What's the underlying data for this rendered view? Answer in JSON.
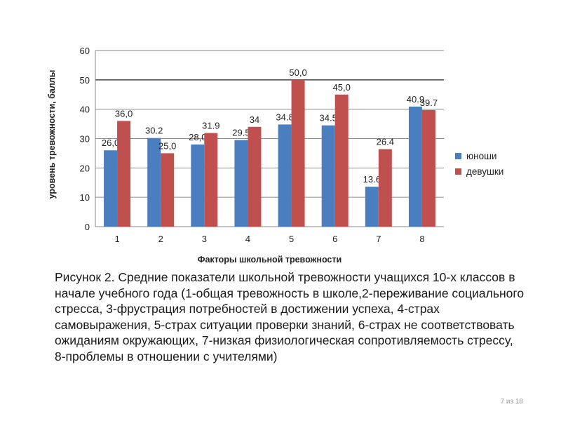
{
  "chart_data": {
    "type": "bar",
    "categories": [
      "1",
      "2",
      "3",
      "4",
      "5",
      "6",
      "7",
      "8"
    ],
    "series": [
      {
        "name": "юноши",
        "color": "#4a7ebf",
        "values": [
          26.0,
          30.2,
          28.0,
          29.5,
          34.8,
          34.5,
          13.6,
          40.9
        ],
        "labels": [
          "26,0",
          "30.2",
          "28,0",
          "29.5",
          "34.8",
          "34.5",
          "13.6",
          "40.9"
        ]
      },
      {
        "name": "девушки",
        "color": "#c0504d",
        "values": [
          36.0,
          25.0,
          31.9,
          34.0,
          50.0,
          45.0,
          26.4,
          39.7
        ],
        "labels": [
          "36,0",
          "25,0",
          "31.9",
          "34",
          "50,0",
          "45,0",
          "26.4",
          "39.7"
        ]
      }
    ],
    "xlabel": "Факторы школьной тревожности",
    "ylabel": "уровень тревожности, баллы",
    "ylim": [
      0,
      60
    ],
    "yticks": [
      0,
      10,
      20,
      30,
      40,
      50,
      60
    ],
    "grid": true,
    "legend_position": "right"
  },
  "caption": "Рисунок 2. Средние показатели школьной тревожности учащихся 10-х классов в начале учебного года (1-общая тревожность в школе,2-переживание социального стресса, 3-фрустрация потребностей в достижении успеха, 4-страх самовыражения, 5-страх ситуации проверки знаний, 6-страх не соответствовать ожиданиям окружающих, 7-низкая физиологическая сопротивляемость стрессу, 8-проблемы в отношении с учителями)",
  "page_indicator": "7 из 18"
}
